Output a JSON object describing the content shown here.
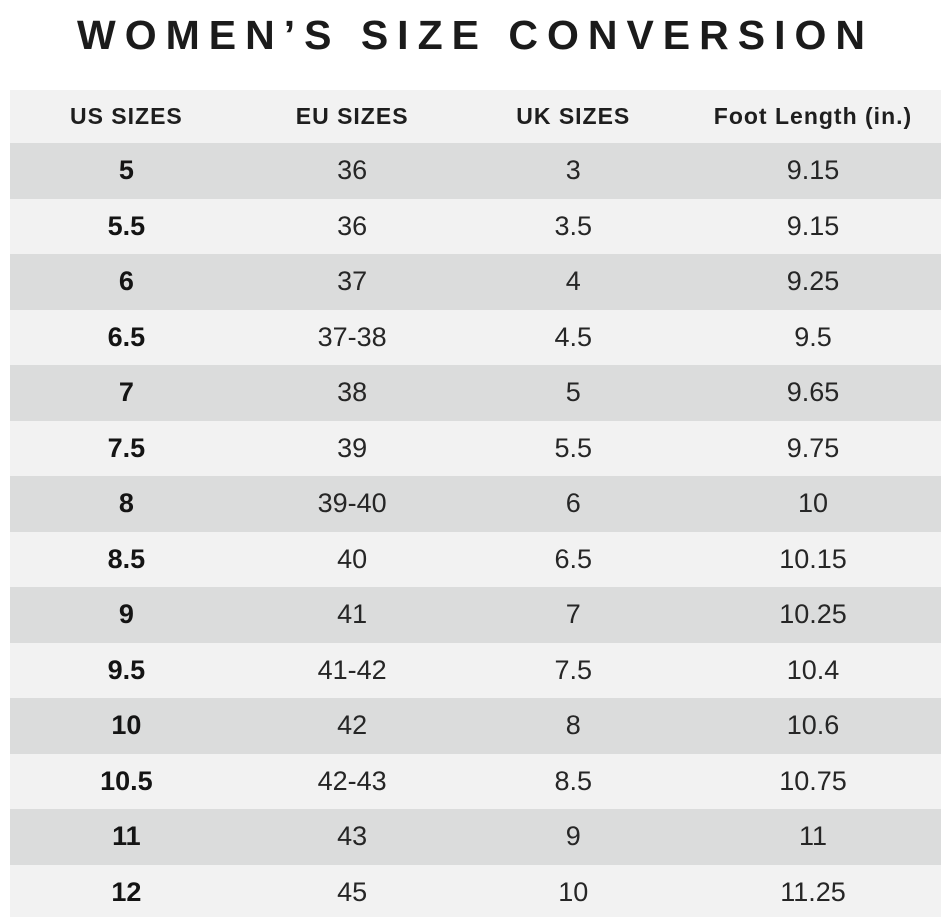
{
  "title": "WOMEN’S SIZE CONVERSION",
  "colors": {
    "background": "#ffffff",
    "header_row": "#f2f2f2",
    "row_dark": "#dbdcdc",
    "row_light": "#f2f2f2",
    "text": "#1b1b1b"
  },
  "chart_data": {
    "type": "table",
    "title": "WOMEN’S SIZE CONVERSION",
    "columns": [
      "US SIZES",
      "EU SIZES",
      "UK SIZES",
      "Foot Length (in.)"
    ],
    "rows": [
      [
        "5",
        "36",
        "3",
        "9.15"
      ],
      [
        "5.5",
        "36",
        "3.5",
        "9.15"
      ],
      [
        "6",
        "37",
        "4",
        "9.25"
      ],
      [
        "6.5",
        "37-38",
        "4.5",
        "9.5"
      ],
      [
        "7",
        "38",
        "5",
        "9.65"
      ],
      [
        "7.5",
        "39",
        "5.5",
        "9.75"
      ],
      [
        "8",
        "39-40",
        "6",
        "10"
      ],
      [
        "8.5",
        "40",
        "6.5",
        "10.15"
      ],
      [
        "9",
        "41",
        "7",
        "10.25"
      ],
      [
        "9.5",
        "41-42",
        "7.5",
        "10.4"
      ],
      [
        "10",
        "42",
        "8",
        "10.6"
      ],
      [
        "10.5",
        "42-43",
        "8.5",
        "10.75"
      ],
      [
        "11",
        "43",
        "9",
        "11"
      ],
      [
        "12",
        "45",
        "10",
        "11.25"
      ]
    ]
  }
}
